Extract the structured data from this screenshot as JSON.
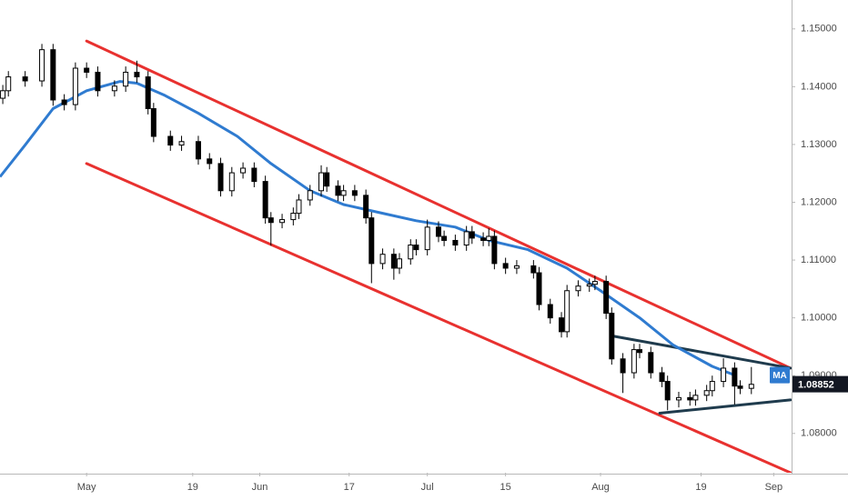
{
  "chart_data": {
    "type": "candlestick",
    "x": [
      -15,
      -14,
      -11,
      -8,
      -6,
      -4,
      -2,
      0,
      2,
      5,
      7,
      9,
      11,
      12,
      15,
      17,
      20,
      22,
      24,
      26,
      28,
      30,
      32,
      33,
      35,
      37,
      38,
      40,
      42,
      43,
      45,
      46,
      48,
      50,
      51,
      53,
      55,
      56,
      58,
      59,
      61,
      63,
      64,
      66,
      68,
      69,
      71,
      72,
      73,
      75,
      77,
      80,
      81,
      83,
      85,
      86,
      88,
      90,
      91,
      93,
      94,
      96,
      98,
      99,
      101,
      103,
      104,
      106,
      108,
      109,
      111,
      112,
      114,
      116,
      117,
      119
    ],
    "open": [
      1.138,
      1.1393,
      1.1417,
      1.141,
      1.1464,
      1.1377,
      1.1369,
      1.1432,
      1.1425,
      1.1393,
      1.1401,
      1.1425,
      1.1417,
      1.1362,
      1.1314,
      1.1299,
      1.1305,
      1.1275,
      1.1267,
      1.122,
      1.1251,
      1.1259,
      1.1236,
      1.1173,
      1.1165,
      1.117,
      1.1181,
      1.1204,
      1.122,
      1.1251,
      1.1228,
      1.1212,
      1.122,
      1.1212,
      1.1173,
      1.1094,
      1.111,
      1.1086,
      1.1102,
      1.1126,
      1.1118,
      1.1157,
      1.1141,
      1.1134,
      1.1126,
      1.1149,
      1.1138,
      1.1134,
      1.1141,
      1.1094,
      1.1086,
      1.109,
      1.1078,
      1.1023,
      1.1,
      1.0976,
      1.1047,
      1.1055,
      1.1058,
      1.1063,
      1.1008,
      1.0929,
      1.0905,
      1.0945,
      1.094,
      1.0905,
      1.089,
      1.0858,
      1.0862,
      1.0858,
      1.0866,
      1.0874,
      1.089,
      1.0913,
      1.0882,
      1.0878
    ],
    "high": [
      1.1403,
      1.1427,
      1.1427,
      1.1474,
      1.1474,
      1.1387,
      1.1442,
      1.1442,
      1.1435,
      1.1411,
      1.1435,
      1.1445,
      1.1427,
      1.1372,
      1.1324,
      1.1315,
      1.1315,
      1.1285,
      1.1277,
      1.1261,
      1.1269,
      1.1269,
      1.1246,
      1.1183,
      1.118,
      1.1191,
      1.1214,
      1.123,
      1.1264,
      1.1261,
      1.1238,
      1.123,
      1.123,
      1.1222,
      1.1183,
      1.112,
      1.112,
      1.1112,
      1.1136,
      1.1136,
      1.117,
      1.1167,
      1.1151,
      1.1144,
      1.1159,
      1.1159,
      1.1148,
      1.1155,
      1.1151,
      1.1104,
      1.11,
      1.11,
      1.1088,
      1.1033,
      1.101,
      1.1057,
      1.1065,
      1.1068,
      1.1073,
      1.1073,
      1.1018,
      1.0939,
      1.0955,
      1.0955,
      1.095,
      1.0915,
      1.09,
      1.0872,
      1.0872,
      1.0876,
      1.0884,
      1.09,
      1.093,
      1.0923,
      1.0892,
      1.0915
    ],
    "low": [
      1.137,
      1.1383,
      1.14,
      1.14,
      1.1367,
      1.1359,
      1.1359,
      1.1415,
      1.1383,
      1.1383,
      1.1391,
      1.1407,
      1.1352,
      1.1304,
      1.1289,
      1.1289,
      1.1265,
      1.1257,
      1.121,
      1.121,
      1.1241,
      1.1226,
      1.1163,
      1.1125,
      1.1155,
      1.116,
      1.1171,
      1.1194,
      1.121,
      1.1218,
      1.1202,
      1.1202,
      1.1202,
      1.1163,
      1.106,
      1.1084,
      1.1066,
      1.1076,
      1.1092,
      1.1108,
      1.1108,
      1.1131,
      1.1124,
      1.1116,
      1.1116,
      1.1128,
      1.1124,
      1.1124,
      1.1084,
      1.1076,
      1.1076,
      1.1068,
      1.1013,
      1.099,
      1.0966,
      1.0966,
      1.1037,
      1.1045,
      1.1048,
      1.0998,
      1.0919,
      1.087,
      1.0895,
      1.093,
      1.0895,
      1.088,
      1.084,
      1.0845,
      1.0848,
      1.0848,
      1.0856,
      1.0864,
      1.088,
      1.085,
      1.0868,
      1.0868
    ],
    "close": [
      1.1393,
      1.1417,
      1.141,
      1.1464,
      1.1377,
      1.1369,
      1.1432,
      1.1425,
      1.1393,
      1.1401,
      1.1425,
      1.1417,
      1.1362,
      1.1314,
      1.1299,
      1.1305,
      1.1275,
      1.1267,
      1.122,
      1.1251,
      1.1259,
      1.1236,
      1.1173,
      1.1165,
      1.117,
      1.1181,
      1.1204,
      1.122,
      1.1251,
      1.1228,
      1.1212,
      1.122,
      1.1212,
      1.1173,
      1.1094,
      1.111,
      1.1086,
      1.1102,
      1.1126,
      1.1118,
      1.1157,
      1.1141,
      1.1134,
      1.1126,
      1.1149,
      1.1138,
      1.1134,
      1.1141,
      1.1094,
      1.1086,
      1.109,
      1.1078,
      1.1023,
      1.1,
      1.0976,
      1.1047,
      1.1055,
      1.1058,
      1.1063,
      1.1008,
      1.0929,
      1.0905,
      1.0945,
      1.094,
      1.0905,
      1.089,
      1.0858,
      1.0862,
      1.0858,
      1.0866,
      1.0874,
      1.089,
      1.0913,
      1.0882,
      1.0878,
      1.0885
    ],
    "up_color": "#ffffff",
    "down_color": "#000000",
    "ma": {
      "name": "MA",
      "color": "#2f7bd0",
      "x": [
        -15.5,
        -11,
        -6,
        0,
        6,
        9,
        14,
        20,
        27,
        33,
        40,
        46,
        53,
        59,
        66,
        72,
        79,
        86,
        92,
        99,
        105,
        112,
        116
      ],
      "values": [
        1.1244,
        1.1299,
        1.1362,
        1.1393,
        1.1409,
        1.1406,
        1.1385,
        1.1354,
        1.1314,
        1.1267,
        1.122,
        1.1196,
        1.1181,
        1.1168,
        1.1157,
        1.1134,
        1.1118,
        1.1086,
        1.1047,
        1.1,
        1.0953,
        1.0916,
        1.0901
      ]
    },
    "trendlines": [
      {
        "color": "#e8312f",
        "x": [
          0,
          126
        ],
        "values": [
          1.1479,
          1.0913
        ]
      },
      {
        "color": "#e8312f",
        "x": [
          0,
          126
        ],
        "values": [
          1.1267,
          1.0732
        ]
      },
      {
        "color": "#1f3b4d",
        "x": [
          94.5,
          126
        ],
        "values": [
          1.0968,
          1.0913
        ]
      },
      {
        "color": "#1f3b4d",
        "x": [
          102.6,
          126
        ],
        "values": [
          1.0835,
          1.0858
        ]
      }
    ],
    "last_price": 1.08852,
    "xlim": [
      -15.5,
      126.2
    ],
    "ylim": [
      1.0732,
      1.155
    ],
    "xticks": [
      {
        "value": 0,
        "label": "May"
      },
      19,
      {
        "value": 31,
        "label": "Jun"
      },
      {
        "value": 47,
        "label": "17"
      },
      {
        "value": 61,
        "label": "Jul"
      },
      {
        "value": 75,
        "label": "15"
      },
      {
        "value": 92,
        "label": "Aug"
      },
      {
        "value": 110,
        "label": "19"
      },
      {
        "value": 123,
        "label": "Sep"
      }
    ],
    "yticks": [
      {
        "value": 1.08,
        "label": "1.08000"
      },
      {
        "value": 1.09,
        "label": "1.09000"
      },
      {
        "value": 1.1,
        "label": "1.10000"
      },
      {
        "value": 1.11,
        "label": "1.11000"
      },
      {
        "value": 1.12,
        "label": "1.12000"
      },
      {
        "value": 1.13,
        "label": "1.13000"
      },
      {
        "value": 1.14,
        "label": "1.14000"
      },
      {
        "value": 1.15,
        "label": "1.15000"
      }
    ]
  }
}
